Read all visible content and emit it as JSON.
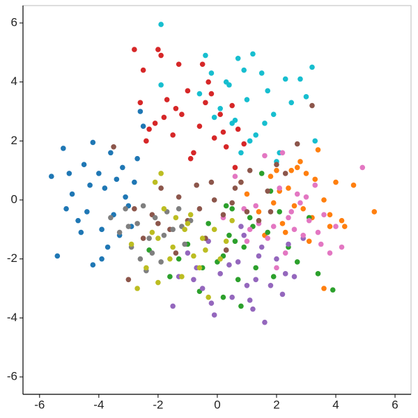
{
  "chart_data": {
    "type": "scatter",
    "xlim": [
      -6.56,
      6.54
    ],
    "ylim": [
      -6.59,
      6.59
    ],
    "xticks": [
      -6,
      -4,
      -2,
      0,
      2,
      4,
      6
    ],
    "yticks": [
      -6,
      -4,
      -2,
      0,
      2,
      4,
      6
    ],
    "series": [
      {
        "color": "#17becf",
        "x": [
          -1.9,
          -1.9,
          -0.4,
          -0.6,
          -0.2,
          0.1,
          0.3,
          0.5,
          0.7,
          0.8,
          1.0,
          1.2,
          1.3,
          1.5,
          1.7,
          1.9,
          2.1,
          2.3,
          2.5,
          2.8,
          3.0,
          3.2,
          3.3,
          0.6,
          1.1,
          0.4,
          1.6,
          2.0,
          -0.1,
          0.9
        ],
        "values": [
          5.95,
          3.9,
          4.9,
          3.6,
          4.3,
          3.1,
          4.0,
          2.6,
          4.8,
          1.6,
          3.4,
          4.95,
          2.2,
          4.3,
          3.7,
          2.9,
          1.6,
          4.1,
          3.3,
          4.1,
          3.5,
          4.5,
          2.0,
          2.7,
          2.0,
          3.9,
          2.6,
          1.3,
          2.8,
          4.4
        ]
      },
      {
        "color": "#d62728",
        "x": [
          -2.8,
          -2.5,
          -2.0,
          -1.9,
          -1.3,
          -2.6,
          -2.4,
          -2.1,
          -1.7,
          -1.5,
          -1.2,
          -1.0,
          -0.8,
          -0.6,
          -0.4,
          -0.3,
          -0.1,
          0.1,
          0.3,
          0.5,
          0.7,
          0.9,
          -1.8,
          -0.9,
          -0.5,
          0.2,
          -1.4,
          -2.3,
          -0.2,
          0.6
        ],
        "values": [
          5.1,
          4.4,
          5.1,
          4.9,
          4.6,
          3.3,
          2.0,
          2.6,
          3.4,
          2.2,
          2.9,
          3.7,
          1.6,
          2.5,
          3.3,
          4.0,
          2.1,
          2.9,
          1.8,
          3.2,
          2.4,
          1.9,
          2.8,
          1.4,
          4.6,
          2.3,
          3.1,
          2.4,
          3.6,
          1.1
        ]
      },
      {
        "color": "#1f77b4",
        "x": [
          -5.6,
          -5.4,
          -5.2,
          -5.1,
          -4.9,
          -4.7,
          -4.5,
          -4.3,
          -4.2,
          -4.2,
          -4.0,
          -3.9,
          -3.8,
          -3.7,
          -3.6,
          -3.5,
          -3.4,
          -3.3,
          -3.2,
          -3.0,
          -2.9,
          -2.8,
          -2.7,
          -2.6,
          -2.5,
          -4.4,
          -3.9,
          -4.6,
          -3.1,
          -5.0
        ],
        "values": [
          0.8,
          -1.9,
          1.75,
          -0.3,
          0.2,
          -0.7,
          1.2,
          0.5,
          -2.2,
          1.95,
          0.9,
          -1.0,
          0.4,
          -1.6,
          1.6,
          -0.5,
          0.7,
          -1.2,
          1.1,
          -0.2,
          -0.9,
          0.6,
          1.4,
          3.0,
          2.5,
          -0.4,
          -2.0,
          -1.1,
          0.1,
          0.9
        ]
      },
      {
        "color": "#ff7f0e",
        "x": [
          1.0,
          1.4,
          1.8,
          2.0,
          2.2,
          2.4,
          2.6,
          2.8,
          3.0,
          3.2,
          3.4,
          3.6,
          3.8,
          4.0,
          4.3,
          4.6,
          5.3,
          3.6,
          2.5,
          1.6,
          2.9,
          3.3,
          4.2,
          2.1,
          3.1,
          2.7,
          1.9,
          3.8,
          0.8,
          2.3
        ],
        "values": [
          0.2,
          -0.4,
          0.8,
          1.0,
          -0.8,
          0.4,
          -0.2,
          1.3,
          0.9,
          -0.6,
          1.7,
          -3.0,
          -0.9,
          0.6,
          -0.9,
          0.5,
          -0.4,
          0.0,
          1.0,
          -1.2,
          -0.3,
          0.7,
          -0.7,
          0.3,
          -1.4,
          1.1,
          -0.1,
          -0.5,
          0.6,
          -1.1
        ]
      },
      {
        "color": "#2ca02c",
        "x": [
          -2.3,
          -1.6,
          -1.0,
          -0.6,
          -0.3,
          0.0,
          0.2,
          0.4,
          0.5,
          0.7,
          0.9,
          1.1,
          1.3,
          1.5,
          1.7,
          1.9,
          2.1,
          2.4,
          2.7,
          3.1,
          3.4,
          3.9,
          0.2,
          -0.5,
          1.2,
          0.8,
          -1.3,
          0.6,
          1.8,
          0.3
        ],
        "values": [
          -1.7,
          -2.6,
          -1.5,
          -3.1,
          -0.8,
          -2.1,
          -3.3,
          -1.2,
          -0.3,
          -2.7,
          -1.6,
          -0.6,
          -2.3,
          0.9,
          -1.1,
          -2.6,
          -0.4,
          -1.6,
          -2.1,
          -0.6,
          -2.5,
          -3.05,
          -1.9,
          -2.3,
          -0.9,
          -3.6,
          -2.0,
          -1.4,
          0.3,
          -0.2
        ]
      },
      {
        "color": "#9467bd",
        "x": [
          -1.5,
          -1.3,
          -1.0,
          -0.7,
          -0.5,
          -0.3,
          -0.1,
          0.1,
          0.3,
          0.5,
          0.7,
          0.9,
          1.1,
          1.3,
          1.5,
          1.6,
          1.8,
          2.0,
          2.2,
          2.4,
          2.6,
          2.9,
          -0.8,
          0.4,
          1.0,
          1.4,
          -0.2,
          0.8,
          2.3,
          1.2
        ],
        "values": [
          -3.6,
          -2.6,
          -1.8,
          -2.3,
          -3.0,
          -1.4,
          -3.9,
          -2.5,
          -1.7,
          -3.3,
          -2.1,
          -1.2,
          -3.4,
          -2.7,
          -1.6,
          -4.15,
          -2.9,
          -2.0,
          -3.2,
          -1.5,
          -2.6,
          -1.3,
          -2.7,
          -2.2,
          -2.9,
          -1.9,
          -3.5,
          -0.9,
          -2.5,
          -3.7
        ]
      },
      {
        "color": "#e377c2",
        "x": [
          0.2,
          0.6,
          1.0,
          1.3,
          1.6,
          1.9,
          2.1,
          2.3,
          2.5,
          2.7,
          2.9,
          3.1,
          3.3,
          3.5,
          3.8,
          4.2,
          4.9,
          2.0,
          1.4,
          3.0,
          2.6,
          0.9,
          3.6,
          2.2,
          1.7,
          4.0,
          2.8,
          1.1,
          3.4,
          2.4
        ],
        "values": [
          -0.6,
          0.8,
          -1.4,
          -0.2,
          1.5,
          -0.9,
          0.4,
          -1.8,
          -0.4,
          0.2,
          -1.2,
          -0.7,
          0.5,
          -1.5,
          -1.8,
          -1.6,
          1.1,
          -2.3,
          -0.8,
          0.1,
          -1.0,
          -0.3,
          -0.5,
          1.6,
          -1.3,
          -0.9,
          -0.1,
          -1.0,
          -1.1,
          -0.6
        ]
      },
      {
        "color": "#8c564b",
        "x": [
          -3.5,
          -3.0,
          -2.8,
          -2.5,
          -2.2,
          -1.9,
          -1.6,
          -1.3,
          -1.0,
          -0.7,
          -0.4,
          -0.1,
          0.2,
          0.5,
          0.8,
          1.1,
          1.4,
          1.7,
          2.0,
          2.3,
          2.7,
          3.2,
          -0.6,
          0.3,
          1.0,
          -1.4,
          -2.0,
          0.6,
          1.8,
          -0.2
        ],
        "values": [
          1.8,
          -2.7,
          -0.3,
          -1.3,
          -0.5,
          0.4,
          -1.0,
          0.1,
          -0.7,
          0.5,
          -1.3,
          0.0,
          -0.5,
          -0.1,
          0.6,
          1.0,
          -0.7,
          0.3,
          1.2,
          0.9,
          1.9,
          3.2,
          -0.3,
          -1.7,
          -0.4,
          -1.8,
          -0.8,
          0.4,
          -0.4,
          0.6
        ]
      },
      {
        "color": "#7f7f7f",
        "x": [
          -3.6,
          -3.3,
          -3.1,
          -2.9,
          -2.7,
          -2.5,
          -2.3,
          -2.1,
          -1.9,
          -1.7,
          -1.5,
          -1.3,
          -1.1,
          -0.9,
          -2.6,
          -3.0,
          -2.2,
          -1.8,
          -2.4,
          -1.2
        ],
        "values": [
          -0.6,
          -1.1,
          -0.3,
          -1.6,
          -0.8,
          -0.2,
          -1.3,
          -0.6,
          -2.1,
          -0.4,
          -1.0,
          -0.3,
          -1.5,
          -0.7,
          -2.0,
          -0.9,
          -1.8,
          -1.2,
          -2.4,
          -0.9
        ]
      },
      {
        "color": "#bcbd22",
        "x": [
          -2.9,
          -2.7,
          -2.4,
          -2.2,
          -2.0,
          -1.8,
          -1.5,
          -1.2,
          -1.0,
          -0.8,
          -0.5,
          -0.3,
          -0.1,
          0.1,
          0.3,
          -1.9,
          -2.1,
          -1.4,
          -0.6,
          0.5,
          -2.0,
          -1.1,
          -0.4,
          -1.6,
          -0.9
        ],
        "values": [
          -1.5,
          -3.0,
          -2.3,
          -1.1,
          -2.8,
          -0.3,
          -1.6,
          -2.6,
          -0.8,
          -1.9,
          -1.3,
          -3.3,
          -1.0,
          -2.0,
          -1.4,
          0.9,
          0.6,
          -0.6,
          -2.3,
          -0.7,
          -1.3,
          -1.0,
          -1.7,
          -2.0,
          -0.5
        ]
      }
    ]
  }
}
